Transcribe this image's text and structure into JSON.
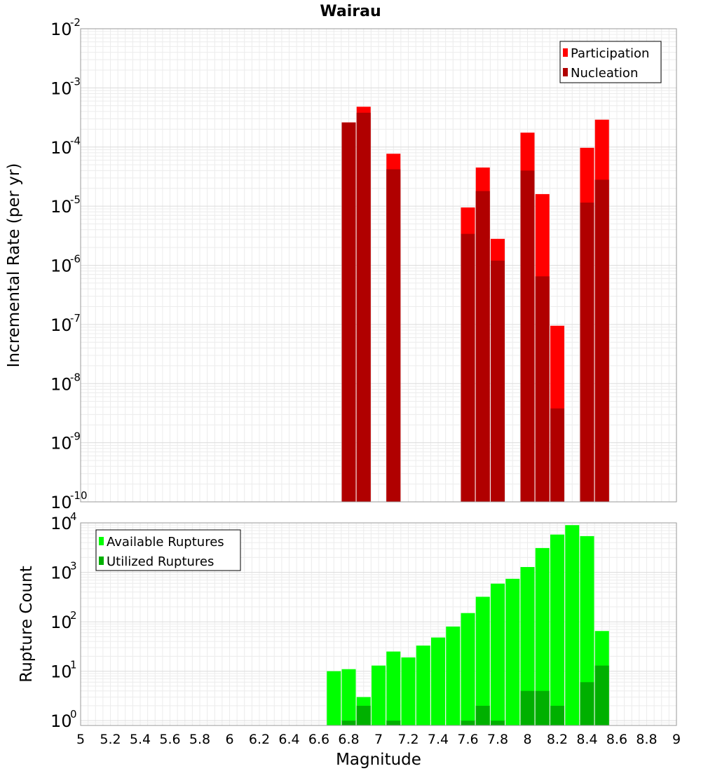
{
  "chart_data": [
    {
      "type": "bar",
      "title": "Wairau",
      "xlabel": "Magnitude",
      "ylabel": "Incremental Rate (per yr)",
      "yscale": "log",
      "xlim": [
        5,
        9
      ],
      "ylim": [
        1e-10,
        0.01
      ],
      "grid": true,
      "legend_position": "top-right",
      "x": [
        6.8,
        6.9,
        7.1,
        7.6,
        7.7,
        7.8,
        8.0,
        8.1,
        8.2,
        8.4,
        8.5
      ],
      "series": [
        {
          "name": "Participation",
          "color": "#ff0000",
          "values": [
            0.00026,
            0.00048,
            7.7e-05,
            9.5e-06,
            4.5e-05,
            2.8e-06,
            0.000175,
            1.6e-05,
            9.5e-08,
            9.7e-05,
            0.00029
          ]
        },
        {
          "name": "Nucleation",
          "color": "#b00000",
          "values": [
            0.00026,
            0.00038,
            4.2e-05,
            3.4e-06,
            1.8e-05,
            1.2e-06,
            4e-05,
            6.5e-07,
            3.8e-09,
            1.15e-05,
            2.8e-05
          ]
        }
      ]
    },
    {
      "type": "bar",
      "title": "",
      "xlabel": "Magnitude",
      "ylabel": "Rupture Count",
      "yscale": "log",
      "xlim": [
        5,
        9
      ],
      "ylim": [
        0.8,
        10000
      ],
      "grid": true,
      "legend_position": "top-left",
      "x": [
        6.7,
        6.8,
        6.9,
        7.0,
        7.1,
        7.2,
        7.3,
        7.4,
        7.5,
        7.6,
        7.7,
        7.8,
        7.9,
        8.0,
        8.1,
        8.2,
        8.3,
        8.4,
        8.5
      ],
      "series": [
        {
          "name": "Available Ruptures",
          "color": "#00ff00",
          "values": [
            10,
            11,
            3,
            13,
            25,
            19,
            33,
            48,
            80,
            150,
            320,
            590,
            740,
            1280,
            3100,
            5800,
            9000,
            5400,
            65
          ]
        },
        {
          "name": "Utilized Ruptures",
          "color": "#00b000",
          "values": [
            0,
            1,
            2,
            0,
            1,
            0,
            0,
            0,
            0,
            1,
            2,
            1,
            0,
            4,
            4,
            2,
            0,
            6,
            13
          ]
        }
      ]
    }
  ],
  "x_ticks": [
    "5",
    "5.2",
    "5.4",
    "5.6",
    "5.8",
    "6",
    "6.2",
    "6.4",
    "6.6",
    "6.8",
    "7",
    "7.2",
    "7.4",
    "7.6",
    "7.8",
    "8",
    "8.2",
    "8.4",
    "8.6",
    "8.8",
    "9"
  ],
  "top_y_ticks": [
    {
      "base": "10",
      "exp": "-2"
    },
    {
      "base": "10",
      "exp": "-3"
    },
    {
      "base": "10",
      "exp": "-4"
    },
    {
      "base": "10",
      "exp": "-5"
    },
    {
      "base": "10",
      "exp": "-6"
    },
    {
      "base": "10",
      "exp": "-7"
    },
    {
      "base": "10",
      "exp": "-8"
    },
    {
      "base": "10",
      "exp": "-9"
    },
    {
      "base": "10",
      "exp": "-10"
    }
  ],
  "bottom_y_ticks": [
    {
      "base": "10",
      "exp": "4"
    },
    {
      "base": "10",
      "exp": "3"
    },
    {
      "base": "10",
      "exp": "2"
    },
    {
      "base": "10",
      "exp": "1"
    },
    {
      "base": "10",
      "exp": "0"
    }
  ]
}
